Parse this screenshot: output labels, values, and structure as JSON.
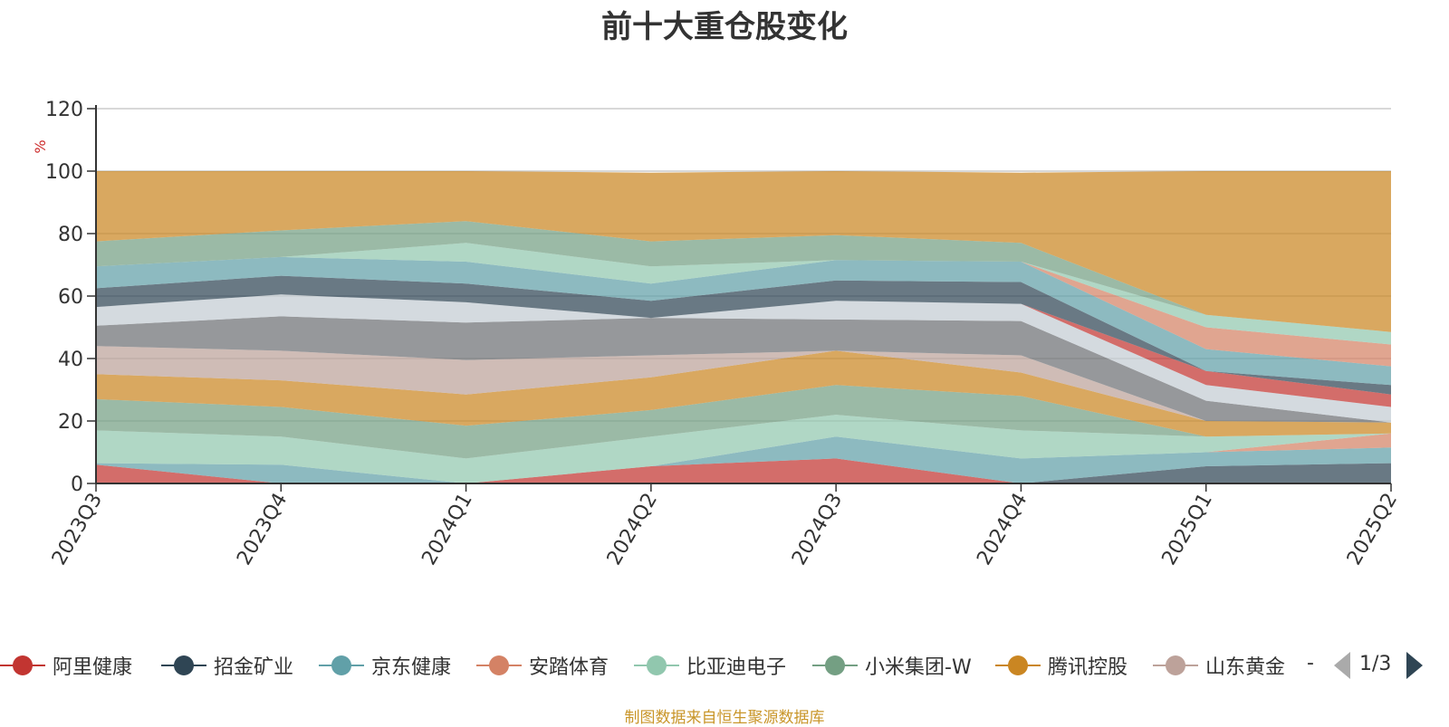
{
  "chart_data": {
    "type": "area",
    "stacked": true,
    "title": "前十大重仓股变化",
    "ylabel": "%",
    "ylim": [
      0,
      120
    ],
    "yticks": [
      0,
      20,
      40,
      60,
      80,
      100,
      120
    ],
    "categories": [
      "2023Q3",
      "2023Q4",
      "2024Q1",
      "2024Q2",
      "2024Q3",
      "2024Q4",
      "2025Q1",
      "2025Q2"
    ],
    "grid": true,
    "legend_position": "bottom",
    "series": [
      {
        "name": "阿里健康",
        "color": "#c23531",
        "values": [
          6,
          0,
          0,
          5.5,
          8,
          0,
          0,
          0
        ]
      },
      {
        "name": "招金矿业",
        "color": "#2f4554",
        "values": [
          0,
          0,
          0,
          0,
          0,
          0,
          5.5,
          6.5
        ]
      },
      {
        "name": "京东健康",
        "color": "#61a0a8",
        "values": [
          0.5,
          6,
          0,
          0,
          7,
          8,
          4.5,
          5
        ]
      },
      {
        "name": "安踏体育",
        "color": "#d48265",
        "values": [
          0,
          0,
          0,
          0,
          0,
          0,
          0,
          4.5
        ]
      },
      {
        "name": "比亚迪电子",
        "color": "#91c7ae",
        "values": [
          10.5,
          9,
          8,
          9.5,
          7,
          9,
          5,
          0
        ]
      },
      {
        "name": "小米集团-W",
        "color": "#749f83",
        "values": [
          10,
          9.5,
          10.5,
          8.5,
          9.5,
          11,
          0,
          0
        ]
      },
      {
        "name": "腾讯控股",
        "color": "#ca8622",
        "values": [
          8,
          8.5,
          10,
          10.5,
          11,
          7.5,
          5,
          3.5
        ]
      },
      {
        "name": "山东黄金",
        "color": "#bda29a",
        "values": [
          9,
          9.5,
          11,
          7,
          0,
          5.5,
          0,
          0
        ]
      },
      {
        "name": "",
        "color": "#6e7074",
        "values": [
          6.5,
          11,
          12,
          12,
          10,
          11,
          6.5,
          0
        ]
      },
      {
        "name": "",
        "color": "#c4ccd3",
        "values": [
          6,
          7,
          6.5,
          0,
          6,
          5.5,
          5,
          5
        ]
      },
      {
        "name": "",
        "color": "#c23531",
        "values": [
          0,
          0,
          0,
          0,
          0,
          0,
          4.5,
          4
        ]
      },
      {
        "name": "",
        "color": "#2f4554",
        "values": [
          6,
          6,
          6,
          5.5,
          6.5,
          7,
          0,
          3
        ]
      },
      {
        "name": "",
        "color": "#61a0a8",
        "values": [
          7,
          6,
          7,
          5.5,
          6.5,
          6.5,
          7,
          6
        ]
      },
      {
        "name": "",
        "color": "#d48265",
        "values": [
          0,
          0,
          0,
          0,
          0,
          0,
          7,
          7
        ]
      },
      {
        "name": "",
        "color": "#91c7ae",
        "values": [
          0,
          0,
          6,
          5.5,
          0,
          0,
          4,
          4
        ]
      },
      {
        "name": "",
        "color": "#749f83",
        "values": [
          8,
          8.5,
          7,
          8,
          8,
          6,
          0,
          0
        ]
      },
      {
        "name": "",
        "color": "#ca8622",
        "values": [
          22.5,
          19,
          16,
          22,
          20.5,
          22.5,
          46,
          51.5
        ]
      }
    ]
  },
  "legend": {
    "more": "-",
    "page": "1/3"
  },
  "source_note": "制图数据来自恒生聚源数据库"
}
